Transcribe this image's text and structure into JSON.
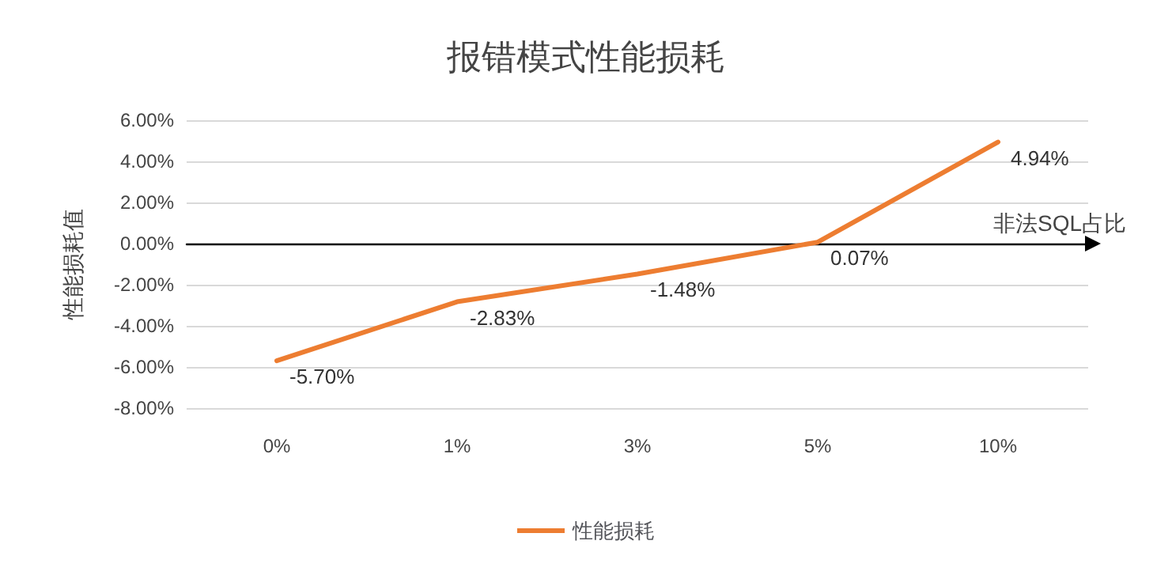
{
  "chart_data": {
    "type": "line",
    "title": "报错模式性能损耗",
    "ylabel": "性能损耗值",
    "xlabel": "非法SQL占比",
    "categories": [
      "0%",
      "1%",
      "3%",
      "5%",
      "10%"
    ],
    "series": [
      {
        "name": "性能损耗",
        "color": "#ed7d31",
        "values": [
          -5.7,
          -2.83,
          -1.48,
          0.07,
          4.94
        ],
        "value_labels": [
          "-5.70%",
          "-2.83%",
          "-1.48%",
          "0.07%",
          "4.94%"
        ]
      }
    ],
    "ylim": [
      -8,
      6
    ],
    "yticks": [
      {
        "value": -8,
        "label": "-8.00%"
      },
      {
        "value": -6,
        "label": "-6.00%"
      },
      {
        "value": -4,
        "label": "-4.00%"
      },
      {
        "value": -2,
        "label": "-2.00%"
      },
      {
        "value": 0,
        "label": "0.00%"
      },
      {
        "value": 2,
        "label": "2.00%"
      },
      {
        "value": 4,
        "label": "4.00%"
      },
      {
        "value": 6,
        "label": "6.00%"
      }
    ],
    "grid": "y",
    "legend": "bottom",
    "marker": "none",
    "line_style": "solid"
  }
}
